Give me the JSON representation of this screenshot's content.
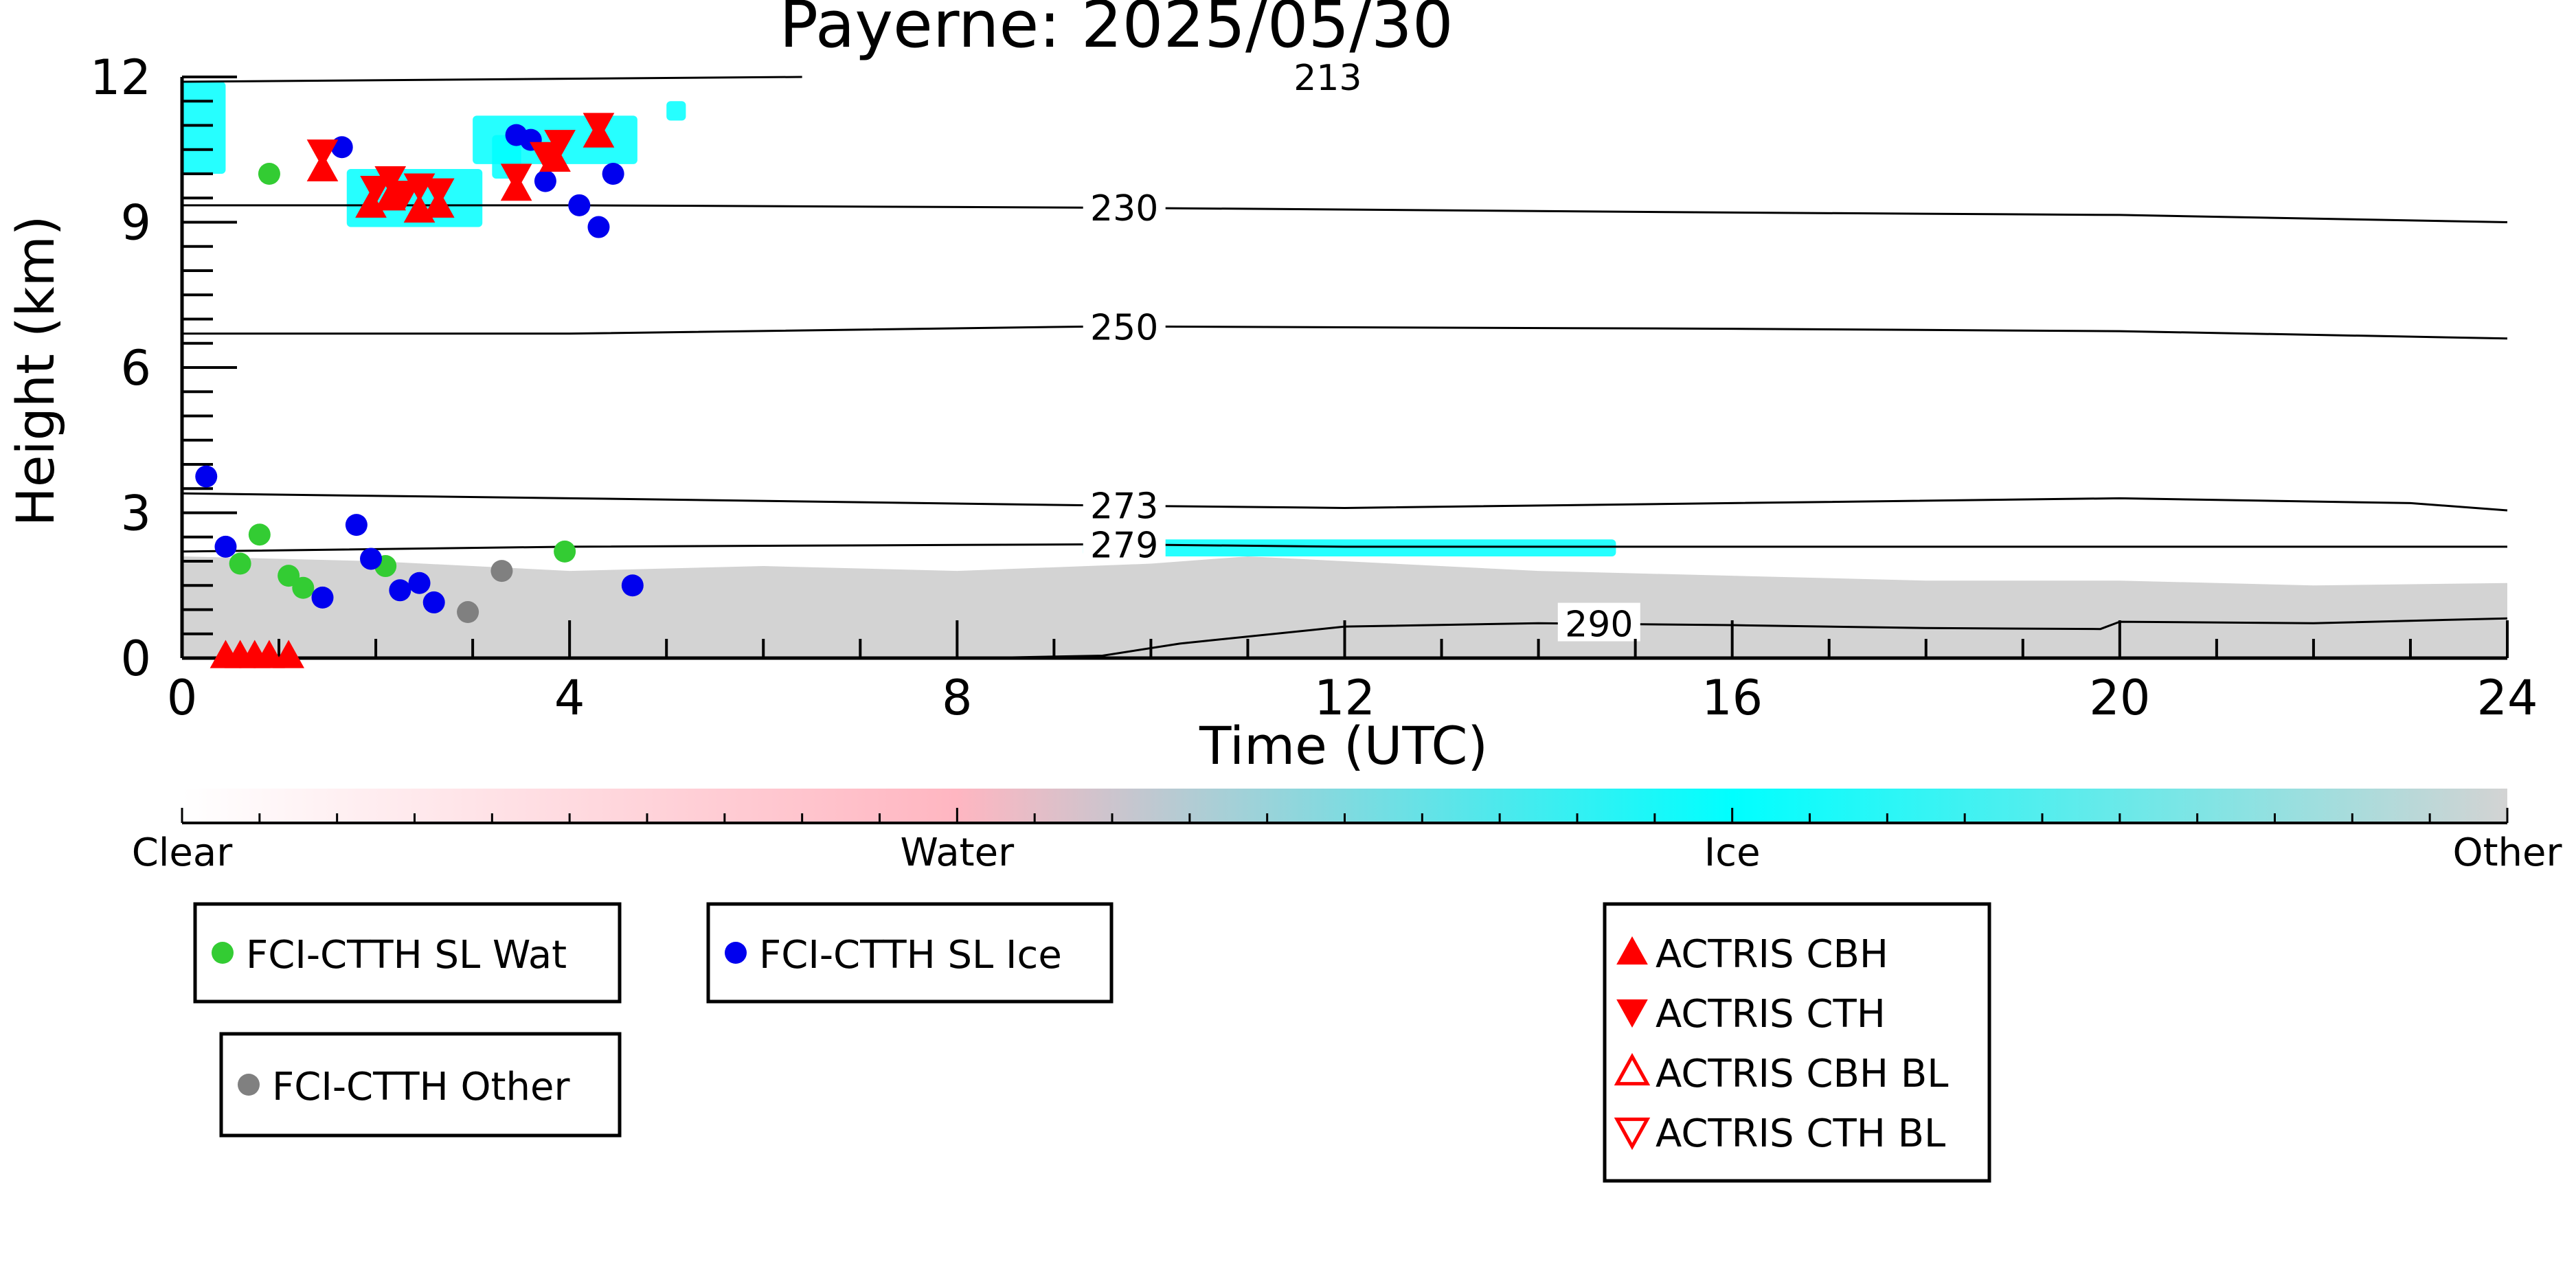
{
  "chart_data": {
    "type": "scatter",
    "title": "Payerne: 2025/05/30",
    "xlabel": "Time (UTC)",
    "ylabel": "Height (km)",
    "xlim": [
      0,
      24
    ],
    "ylim": [
      0,
      12
    ],
    "x_ticks": [
      0,
      4,
      8,
      12,
      16,
      20,
      24
    ],
    "y_ticks": [
      0,
      3,
      6,
      9,
      12
    ],
    "grid": false,
    "isotherms": [
      {
        "label": "213",
        "points": [
          [
            0,
            11.9
          ],
          [
            6.4,
            12.0
          ]
        ],
        "label_x": 11.4
      },
      {
        "label": "230",
        "points": [
          [
            0,
            9.35
          ],
          [
            4,
            9.35
          ],
          [
            9.5,
            9.3
          ],
          [
            16,
            9.2
          ],
          [
            20,
            9.15
          ],
          [
            24,
            9.0
          ]
        ],
        "label_x": 9.3
      },
      {
        "label": "250",
        "points": [
          [
            0,
            6.7
          ],
          [
            4,
            6.7
          ],
          [
            9.5,
            6.85
          ],
          [
            16,
            6.8
          ],
          [
            20,
            6.75
          ],
          [
            24,
            6.6
          ]
        ],
        "label_x": 9.3
      },
      {
        "label": "273",
        "points": [
          [
            0,
            3.4
          ],
          [
            4,
            3.3
          ],
          [
            9.5,
            3.15
          ],
          [
            12,
            3.1
          ],
          [
            16,
            3.2
          ],
          [
            20,
            3.3
          ],
          [
            23,
            3.2
          ],
          [
            24,
            3.05
          ]
        ],
        "label_x": 9.3
      },
      {
        "label": "279",
        "points": [
          [
            0,
            2.2
          ],
          [
            4,
            2.3
          ],
          [
            9.5,
            2.35
          ],
          [
            12,
            2.3
          ],
          [
            16,
            2.3
          ],
          [
            20,
            2.3
          ],
          [
            24,
            2.3
          ]
        ],
        "label_x": 9.3
      },
      {
        "label": "290",
        "points": [
          [
            8.2,
            0
          ],
          [
            9.5,
            0.05
          ],
          [
            10.3,
            0.3
          ],
          [
            12,
            0.65
          ],
          [
            14,
            0.72
          ],
          [
            16,
            0.68
          ],
          [
            18,
            0.62
          ],
          [
            19.8,
            0.6
          ],
          [
            20,
            0.75
          ],
          [
            22,
            0.72
          ],
          [
            24,
            0.82
          ]
        ],
        "label_x": 14.2
      }
    ],
    "series": [
      {
        "name": "FCI-CTTH SL Wat",
        "marker": "circle",
        "color": "#33cc33",
        "points": [
          [
            0.9,
            10.0
          ],
          [
            0.8,
            2.55
          ],
          [
            0.6,
            1.95
          ],
          [
            1.1,
            1.7
          ],
          [
            1.25,
            1.45
          ],
          [
            2.1,
            1.9
          ],
          [
            3.95,
            2.2
          ]
        ]
      },
      {
        "name": "FCI-CTTH SL Ice",
        "marker": "circle",
        "color": "#0000ee",
        "points": [
          [
            0.25,
            3.75
          ],
          [
            0.45,
            2.3
          ],
          [
            1.45,
            1.25
          ],
          [
            1.8,
            2.75
          ],
          [
            1.95,
            2.05
          ],
          [
            2.25,
            1.4
          ],
          [
            2.45,
            1.55
          ],
          [
            2.6,
            1.15
          ],
          [
            1.65,
            10.55
          ],
          [
            3.45,
            10.8
          ],
          [
            3.6,
            10.7
          ],
          [
            3.75,
            9.85
          ],
          [
            4.1,
            9.35
          ],
          [
            4.3,
            8.9
          ],
          [
            4.45,
            10.0
          ],
          [
            4.65,
            1.5
          ]
        ]
      },
      {
        "name": "FCI-CTTH Other",
        "marker": "circle",
        "color": "#808080",
        "points": [
          [
            2.95,
            0.95
          ],
          [
            3.3,
            1.8
          ]
        ]
      },
      {
        "name": "ACTRIS CBH",
        "marker": "triangle-up",
        "color": "#ff0000",
        "points": [
          [
            1.45,
            10.1
          ],
          [
            1.95,
            9.35
          ],
          [
            2.15,
            9.5
          ],
          [
            2.45,
            9.25
          ],
          [
            2.65,
            9.35
          ],
          [
            3.45,
            9.7
          ],
          [
            3.85,
            10.3
          ],
          [
            4.3,
            10.8
          ],
          [
            0.45,
            0.05
          ],
          [
            0.6,
            0.05
          ],
          [
            0.75,
            0.05
          ],
          [
            0.9,
            0.05
          ],
          [
            1.1,
            0.05
          ]
        ]
      },
      {
        "name": "ACTRIS CTH",
        "marker": "triangle-down",
        "color": "#ff0000",
        "points": [
          [
            1.45,
            10.45
          ],
          [
            2.0,
            9.7
          ],
          [
            2.15,
            9.9
          ],
          [
            2.45,
            9.75
          ],
          [
            2.65,
            9.65
          ],
          [
            3.45,
            9.95
          ],
          [
            3.9,
            10.65
          ],
          [
            4.3,
            11.0
          ],
          [
            2.3,
            9.6
          ],
          [
            3.75,
            10.4
          ]
        ]
      },
      {
        "name": "ACTRIS CBH BL",
        "marker": "triangle-up-open",
        "color": "#ff0000",
        "points": []
      },
      {
        "name": "ACTRIS CTH BL",
        "marker": "triangle-down-open",
        "color": "#ff0000",
        "points": []
      }
    ],
    "background": {
      "ice_patches": [
        {
          "t0": 0.0,
          "t1": 0.45,
          "h0": 10.0,
          "h1": 11.9
        },
        {
          "t0": 1.7,
          "t1": 3.1,
          "h0": 8.9,
          "h1": 10.1
        },
        {
          "t0": 3.0,
          "t1": 4.7,
          "h0": 10.2,
          "h1": 11.2
        },
        {
          "t0": 3.2,
          "t1": 3.5,
          "h0": 9.9,
          "h1": 10.8
        },
        {
          "t0": 5.0,
          "t1": 5.2,
          "h0": 11.1,
          "h1": 11.5
        },
        {
          "t0": 9.3,
          "t1": 14.8,
          "h0": 2.1,
          "h1": 2.45
        }
      ],
      "other_layer": [
        [
          0,
          2.1
        ],
        [
          2,
          2.0
        ],
        [
          4,
          1.8
        ],
        [
          6,
          1.9
        ],
        [
          8,
          1.8
        ],
        [
          10,
          1.95
        ],
        [
          11,
          2.1
        ],
        [
          12,
          2.0
        ],
        [
          14,
          1.8
        ],
        [
          16,
          1.7
        ],
        [
          18,
          1.6
        ],
        [
          20,
          1.6
        ],
        [
          22,
          1.5
        ],
        [
          24,
          1.55
        ]
      ]
    },
    "colorbar": {
      "labels": [
        "Clear",
        "Water",
        "Ice",
        "Other"
      ],
      "colors": [
        "#ffffff",
        "#ffb6c1",
        "#00ffff",
        "#d3d3d3"
      ]
    },
    "legend_boxes": [
      {
        "items": [
          "FCI-CTTH SL Wat"
        ]
      },
      {
        "items": [
          "FCI-CTTH SL Ice"
        ]
      },
      {
        "items": [
          "FCI-CTTH Other"
        ]
      },
      {
        "items": [
          "ACTRIS CBH",
          "ACTRIS CTH",
          "ACTRIS CBH BL",
          "ACTRIS CTH BL"
        ]
      }
    ]
  }
}
